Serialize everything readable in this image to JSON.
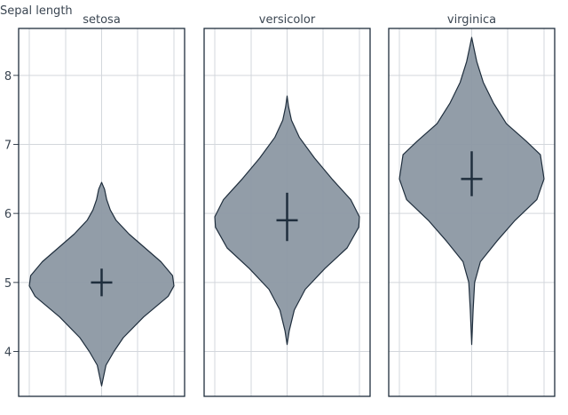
{
  "chart_data": {
    "type": "violin",
    "ylabel": "Sepal length",
    "ylim": [
      3.35,
      8.68
    ],
    "yticks": [
      4,
      5,
      6,
      7,
      8
    ],
    "grid": true,
    "colors": {
      "fill": "#8c98a3",
      "stroke": "#1f2e3d",
      "grid": "#d3d7dc"
    },
    "panels": [
      {
        "name": "setosa",
        "center": 5.0,
        "cross_range": [
          4.8,
          5.2
        ],
        "density": [
          [
            3.5,
            0
          ],
          [
            3.6,
            0.02
          ],
          [
            3.8,
            0.06
          ],
          [
            4.0,
            0.17
          ],
          [
            4.2,
            0.3
          ],
          [
            4.5,
            0.58
          ],
          [
            4.8,
            0.92
          ],
          [
            4.95,
            1.0
          ],
          [
            5.1,
            0.98
          ],
          [
            5.3,
            0.82
          ],
          [
            5.5,
            0.6
          ],
          [
            5.7,
            0.38
          ],
          [
            5.9,
            0.2
          ],
          [
            6.05,
            0.12
          ],
          [
            6.2,
            0.07
          ],
          [
            6.35,
            0.04
          ],
          [
            6.45,
            0
          ]
        ]
      },
      {
        "name": "versicolor",
        "center": 5.9,
        "cross_range": [
          5.6,
          6.3
        ],
        "density": [
          [
            4.1,
            0
          ],
          [
            4.3,
            0.03
          ],
          [
            4.6,
            0.1
          ],
          [
            4.9,
            0.25
          ],
          [
            5.2,
            0.52
          ],
          [
            5.5,
            0.83
          ],
          [
            5.8,
            0.99
          ],
          [
            5.95,
            1.0
          ],
          [
            6.2,
            0.88
          ],
          [
            6.5,
            0.62
          ],
          [
            6.8,
            0.38
          ],
          [
            7.1,
            0.17
          ],
          [
            7.35,
            0.06
          ],
          [
            7.55,
            0.02
          ],
          [
            7.7,
            0
          ]
        ]
      },
      {
        "name": "virginica",
        "center": 6.5,
        "cross_range": [
          6.25,
          6.9
        ],
        "density": [
          [
            4.1,
            0
          ],
          [
            4.6,
            0.02
          ],
          [
            5.0,
            0.04
          ],
          [
            5.3,
            0.12
          ],
          [
            5.6,
            0.35
          ],
          [
            5.9,
            0.6
          ],
          [
            6.2,
            0.9
          ],
          [
            6.5,
            1.0
          ],
          [
            6.85,
            0.95
          ],
          [
            7.05,
            0.75
          ],
          [
            7.3,
            0.48
          ],
          [
            7.6,
            0.3
          ],
          [
            7.9,
            0.16
          ],
          [
            8.2,
            0.07
          ],
          [
            8.4,
            0.03
          ],
          [
            8.55,
            0
          ]
        ]
      }
    ]
  }
}
